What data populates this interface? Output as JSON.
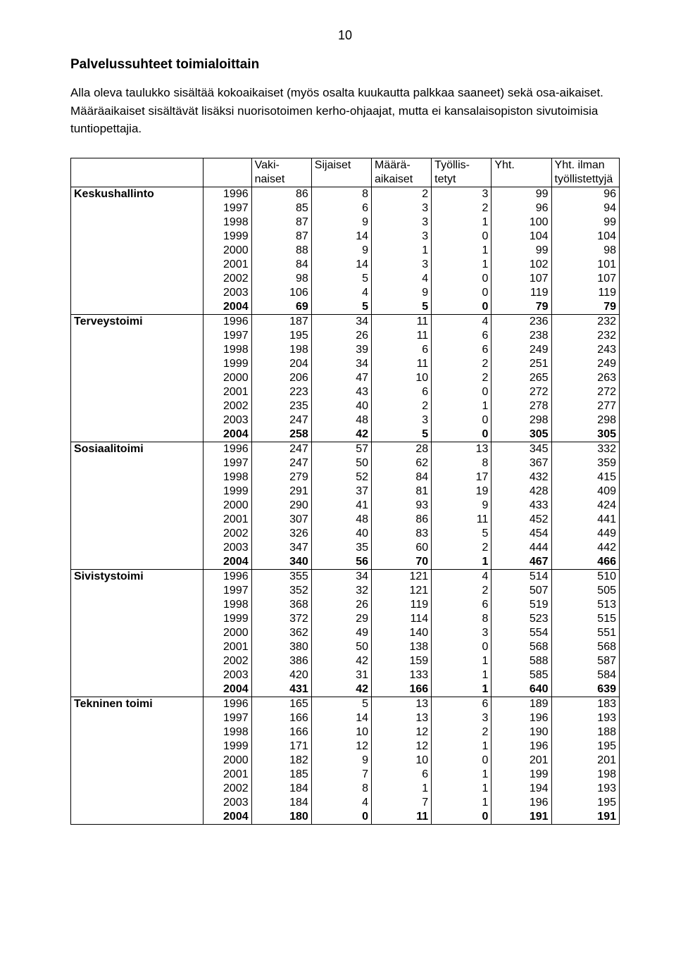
{
  "page_number": "10",
  "title": "Palvelussuhteet toimialoittain",
  "intro": "Alla oleva taulukko sisältää kokoaikaiset (myös osalta kuukautta palkkaa saaneet) sekä osa-aikaiset. Määräaikaiset sisältävät lisäksi nuorisotoimen kerho-ohjaajat, mutta ei kansalaisopiston sivutoimisia tuntiopettajia.",
  "header": {
    "row1": [
      "",
      "",
      "Vaki-",
      "Sijaiset",
      "Määrä-",
      "Työllis-",
      "Yht.",
      "Yht. ilman"
    ],
    "row2": [
      "",
      "",
      "naiset",
      "",
      "aikaiset",
      "tetyt",
      "",
      "työllistettyjä"
    ]
  },
  "sections": [
    {
      "name": "Keskushallinto",
      "rows": [
        {
          "year": "1996",
          "v": [
            "86",
            "8",
            "2",
            "3",
            "99",
            "96"
          ],
          "bold": false
        },
        {
          "year": "1997",
          "v": [
            "85",
            "6",
            "3",
            "2",
            "96",
            "94"
          ],
          "bold": false
        },
        {
          "year": "1998",
          "v": [
            "87",
            "9",
            "3",
            "1",
            "100",
            "99"
          ],
          "bold": false
        },
        {
          "year": "1999",
          "v": [
            "87",
            "14",
            "3",
            "0",
            "104",
            "104"
          ],
          "bold": false
        },
        {
          "year": "2000",
          "v": [
            "88",
            "9",
            "1",
            "1",
            "99",
            "98"
          ],
          "bold": false
        },
        {
          "year": "2001",
          "v": [
            "84",
            "14",
            "3",
            "1",
            "102",
            "101"
          ],
          "bold": false
        },
        {
          "year": "2002",
          "v": [
            "98",
            "5",
            "4",
            "0",
            "107",
            "107"
          ],
          "bold": false
        },
        {
          "year": "2003",
          "v": [
            "106",
            "4",
            "9",
            "0",
            "119",
            "119"
          ],
          "bold": false
        },
        {
          "year": "2004",
          "v": [
            "69",
            "5",
            "5",
            "0",
            "79",
            "79"
          ],
          "bold": true
        }
      ]
    },
    {
      "name": "Terveystoimi",
      "rows": [
        {
          "year": "1996",
          "v": [
            "187",
            "34",
            "11",
            "4",
            "236",
            "232"
          ],
          "bold": false
        },
        {
          "year": "1997",
          "v": [
            "195",
            "26",
            "11",
            "6",
            "238",
            "232"
          ],
          "bold": false
        },
        {
          "year": "1998",
          "v": [
            "198",
            "39",
            "6",
            "6",
            "249",
            "243"
          ],
          "bold": false
        },
        {
          "year": "1999",
          "v": [
            "204",
            "34",
            "11",
            "2",
            "251",
            "249"
          ],
          "bold": false
        },
        {
          "year": "2000",
          "v": [
            "206",
            "47",
            "10",
            "2",
            "265",
            "263"
          ],
          "bold": false
        },
        {
          "year": "2001",
          "v": [
            "223",
            "43",
            "6",
            "0",
            "272",
            "272"
          ],
          "bold": false
        },
        {
          "year": "2002",
          "v": [
            "235",
            "40",
            "2",
            "1",
            "278",
            "277"
          ],
          "bold": false
        },
        {
          "year": "2003",
          "v": [
            "247",
            "48",
            "3",
            "0",
            "298",
            "298"
          ],
          "bold": false
        },
        {
          "year": "2004",
          "v": [
            "258",
            "42",
            "5",
            "0",
            "305",
            "305"
          ],
          "bold": true
        }
      ]
    },
    {
      "name": "Sosiaalitoimi",
      "rows": [
        {
          "year": "1996",
          "v": [
            "247",
            "57",
            "28",
            "13",
            "345",
            "332"
          ],
          "bold": false
        },
        {
          "year": "1997",
          "v": [
            "247",
            "50",
            "62",
            "8",
            "367",
            "359"
          ],
          "bold": false
        },
        {
          "year": "1998",
          "v": [
            "279",
            "52",
            "84",
            "17",
            "432",
            "415"
          ],
          "bold": false
        },
        {
          "year": "1999",
          "v": [
            "291",
            "37",
            "81",
            "19",
            "428",
            "409"
          ],
          "bold": false
        },
        {
          "year": "2000",
          "v": [
            "290",
            "41",
            "93",
            "9",
            "433",
            "424"
          ],
          "bold": false
        },
        {
          "year": "2001",
          "v": [
            "307",
            "48",
            "86",
            "11",
            "452",
            "441"
          ],
          "bold": false
        },
        {
          "year": "2002",
          "v": [
            "326",
            "40",
            "83",
            "5",
            "454",
            "449"
          ],
          "bold": false
        },
        {
          "year": "2003",
          "v": [
            "347",
            "35",
            "60",
            "2",
            "444",
            "442"
          ],
          "bold": false
        },
        {
          "year": "2004",
          "v": [
            "340",
            "56",
            "70",
            "1",
            "467",
            "466"
          ],
          "bold": true
        }
      ]
    },
    {
      "name": "Sivistystoimi",
      "rows": [
        {
          "year": "1996",
          "v": [
            "355",
            "34",
            "121",
            "4",
            "514",
            "510"
          ],
          "bold": false
        },
        {
          "year": "1997",
          "v": [
            "352",
            "32",
            "121",
            "2",
            "507",
            "505"
          ],
          "bold": false
        },
        {
          "year": "1998",
          "v": [
            "368",
            "26",
            "119",
            "6",
            "519",
            "513"
          ],
          "bold": false
        },
        {
          "year": "1999",
          "v": [
            "372",
            "29",
            "114",
            "8",
            "523",
            "515"
          ],
          "bold": false
        },
        {
          "year": "2000",
          "v": [
            "362",
            "49",
            "140",
            "3",
            "554",
            "551"
          ],
          "bold": false
        },
        {
          "year": "2001",
          "v": [
            "380",
            "50",
            "138",
            "0",
            "568",
            "568"
          ],
          "bold": false
        },
        {
          "year": "2002",
          "v": [
            "386",
            "42",
            "159",
            "1",
            "588",
            "587"
          ],
          "bold": false
        },
        {
          "year": "2003",
          "v": [
            "420",
            "31",
            "133",
            "1",
            "585",
            "584"
          ],
          "bold": false
        },
        {
          "year": "2004",
          "v": [
            "431",
            "42",
            "166",
            "1",
            "640",
            "639"
          ],
          "bold": true
        }
      ]
    },
    {
      "name": "Tekninen toimi",
      "rows": [
        {
          "year": "1996",
          "v": [
            "165",
            "5",
            "13",
            "6",
            "189",
            "183"
          ],
          "bold": false
        },
        {
          "year": "1997",
          "v": [
            "166",
            "14",
            "13",
            "3",
            "196",
            "193"
          ],
          "bold": false
        },
        {
          "year": "1998",
          "v": [
            "166",
            "10",
            "12",
            "2",
            "190",
            "188"
          ],
          "bold": false
        },
        {
          "year": "1999",
          "v": [
            "171",
            "12",
            "12",
            "1",
            "196",
            "195"
          ],
          "bold": false
        },
        {
          "year": "2000",
          "v": [
            "182",
            "9",
            "10",
            "0",
            "201",
            "201"
          ],
          "bold": false
        },
        {
          "year": "2001",
          "v": [
            "185",
            "7",
            "6",
            "1",
            "199",
            "198"
          ],
          "bold": false
        },
        {
          "year": "2002",
          "v": [
            "184",
            "8",
            "1",
            "1",
            "194",
            "193"
          ],
          "bold": false
        },
        {
          "year": "2003",
          "v": [
            "184",
            "4",
            "7",
            "1",
            "196",
            "195"
          ],
          "bold": false
        },
        {
          "year": "2004",
          "v": [
            "180",
            "0",
            "11",
            "0",
            "191",
            "191"
          ],
          "bold": true
        }
      ]
    }
  ],
  "style": {
    "background_color": "#ffffff",
    "text_color": "#000000",
    "border_color": "#000000",
    "title_fontsize_pt": 14,
    "body_fontsize_pt": 12,
    "table_fontsize_pt": 12,
    "font_family": "Arial"
  }
}
